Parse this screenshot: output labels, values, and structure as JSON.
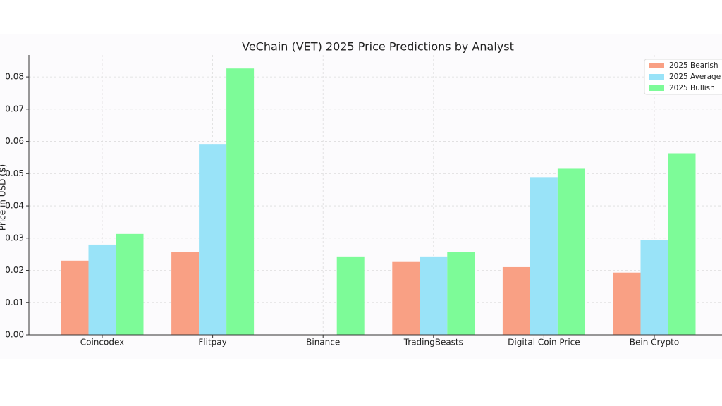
{
  "chart_data": {
    "type": "bar",
    "title": "VeChain (VET) 2025 Price Predictions by Analyst",
    "y_label": "Price in USD ($)",
    "categories": [
      "Coincodex",
      "Flitpay",
      "Binance",
      "TradingBeasts",
      "Digital Coin Price",
      "Bein Crypto"
    ],
    "series": [
      {
        "name": "2025 Bearish",
        "color": "#f9a084",
        "values": [
          0.023,
          0.0256,
          null,
          0.0228,
          0.021,
          0.0193
        ]
      },
      {
        "name": "2025 Average",
        "color": "#99e3f8",
        "values": [
          0.028,
          0.059,
          null,
          0.0243,
          0.0489,
          0.0293
        ]
      },
      {
        "name": "2025 Bullish",
        "color": "#7dfb98",
        "values": [
          0.0313,
          0.0826,
          0.0243,
          0.0257,
          0.0515,
          0.0563
        ]
      }
    ],
    "ylim": [
      0,
      0.0868
    ],
    "yticks": [
      {
        "value": 0,
        "label": "0.00"
      },
      0.01,
      0.02,
      0.03,
      0.04,
      0.05,
      0.06,
      0.07,
      0.08
    ],
    "grid": true,
    "legend": "upper right"
  }
}
